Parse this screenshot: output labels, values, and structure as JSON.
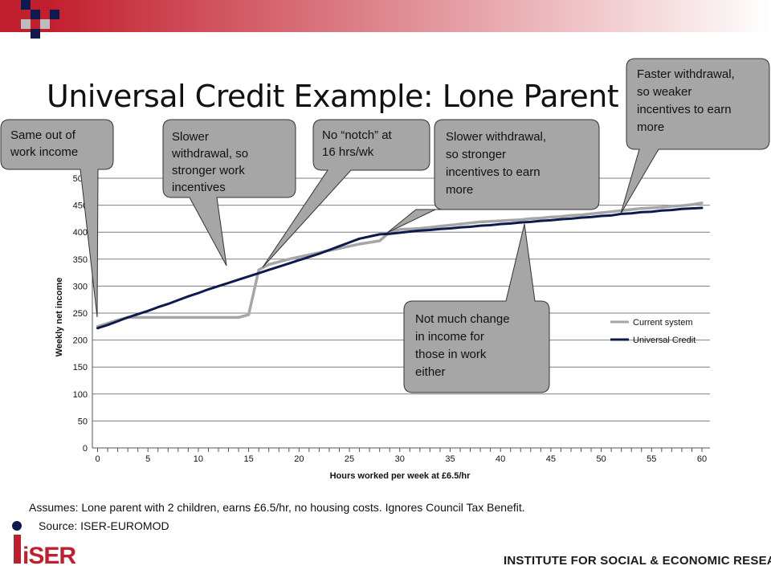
{
  "slide": {
    "title": "Universal Credit Example: Lone Parent",
    "assumptions": "Assumes: Lone parent with 2 children, earns £6.5/hr, no housing costs. Ignores Council Tax Benefit.",
    "source": "Source: ISER-EUROMOD",
    "institute": "INSTITUTE FOR SOCIAL & ECONOMIC RESEARCH",
    "logo_text": "iSER",
    "colors": {
      "brand_red": "#c21f2e",
      "dark_navy": "#0d1a4d",
      "current_series": "#a6a6a6",
      "callout_fill": "#a6a6a6"
    }
  },
  "callouts": [
    {
      "id": "same-out-of-work",
      "text": [
        "Same out of",
        "work income"
      ]
    },
    {
      "id": "slower-withdrawal-1",
      "text": [
        "Slower",
        "withdrawal, so",
        "stronger work",
        "incentives"
      ]
    },
    {
      "id": "no-notch",
      "text": [
        "No “notch” at",
        "16 hrs/wk"
      ]
    },
    {
      "id": "slower-withdrawal-2",
      "text": [
        "Slower withdrawal,",
        "so stronger",
        "incentives to earn",
        "more"
      ]
    },
    {
      "id": "faster-withdrawal",
      "text": [
        "Faster withdrawal,",
        "so weaker",
        "incentives to earn",
        "more"
      ]
    },
    {
      "id": "not-much-change",
      "text": [
        "Not much change",
        "in income for",
        "those in work",
        "either"
      ]
    }
  ],
  "chart_data": {
    "type": "line",
    "xlabel": "Hours worked per week at £6.5/hr",
    "ylabel": "Weekly net income",
    "xlim": [
      0,
      60
    ],
    "ylim": [
      0,
      500
    ],
    "xticks": [
      0,
      5,
      10,
      15,
      20,
      25,
      30,
      35,
      40,
      45,
      50,
      55,
      60
    ],
    "yticks": [
      0,
      50,
      100,
      150,
      200,
      250,
      300,
      350,
      400,
      450,
      500
    ],
    "grid": "horizontal",
    "legend": "right",
    "series": [
      {
        "name": "Current system",
        "color": "#a6a6a6",
        "x": [
          0,
          1,
          2,
          3,
          4,
          5,
          6,
          7,
          8,
          9,
          10,
          11,
          12,
          13,
          14,
          15,
          16,
          17,
          18,
          19,
          20,
          21,
          22,
          23,
          24,
          25,
          26,
          27,
          28,
          29,
          30,
          31,
          32,
          33,
          34,
          35,
          36,
          37,
          38,
          39,
          40,
          41,
          42,
          43,
          44,
          45,
          46,
          47,
          48,
          49,
          50,
          51,
          52,
          53,
          54,
          55,
          56,
          57,
          58,
          59,
          60
        ],
        "values": [
          225,
          231,
          237,
          242,
          242,
          242,
          242,
          242,
          242,
          242,
          242,
          242,
          242,
          242,
          242,
          247,
          330,
          340,
          345,
          350,
          354,
          358,
          362,
          366,
          370,
          374,
          378,
          381,
          384,
          400,
          405,
          406,
          407,
          409,
          411,
          413,
          415,
          417,
          419,
          420,
          421,
          422,
          423,
          425,
          426,
          428,
          429,
          431,
          432,
          434,
          436,
          438,
          440,
          442,
          444,
          445,
          446,
          448,
          449,
          451,
          454
        ]
      },
      {
        "name": "Universal Credit",
        "color": "#0d1a4d",
        "x": [
          0,
          1,
          2,
          3,
          4,
          5,
          6,
          7,
          8,
          9,
          10,
          11,
          12,
          13,
          14,
          15,
          16,
          17,
          18,
          19,
          20,
          21,
          22,
          23,
          24,
          25,
          26,
          27,
          28,
          29,
          30,
          31,
          32,
          33,
          34,
          35,
          36,
          37,
          38,
          39,
          40,
          41,
          42,
          43,
          44,
          45,
          46,
          47,
          48,
          49,
          50,
          51,
          52,
          53,
          54,
          55,
          56,
          57,
          58,
          59,
          60
        ],
        "values": [
          222,
          228,
          235,
          242,
          248,
          254,
          261,
          267,
          274,
          281,
          287,
          294,
          300,
          306,
          312,
          318,
          324,
          330,
          336,
          342,
          348,
          354,
          360,
          367,
          374,
          381,
          388,
          392,
          396,
          397,
          399,
          401,
          403,
          404,
          406,
          407,
          409,
          410,
          412,
          413,
          415,
          416,
          418,
          419,
          421,
          422,
          424,
          425,
          427,
          428,
          430,
          431,
          434,
          435,
          437,
          438,
          440,
          441,
          443,
          444,
          445
        ]
      }
    ]
  }
}
